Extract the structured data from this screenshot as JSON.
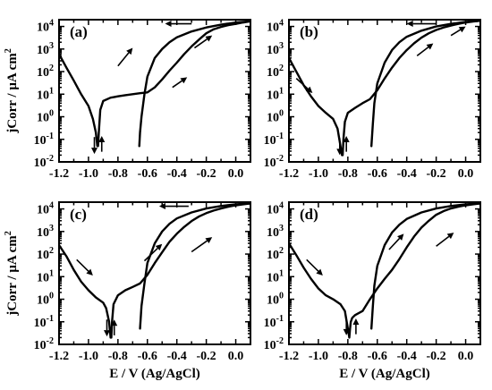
{
  "chart_data": [
    {
      "type": "line",
      "panel_label": "(a)",
      "xlabel": "",
      "ylabel": "jCorr / μA cm^2",
      "xlim": [
        -1.2,
        0.1
      ],
      "ylim_log10": [
        -2,
        4.3
      ],
      "y_scale": "log",
      "xticks": [
        "-1.2",
        "-1.0",
        "-0.8",
        "-0.6",
        "-0.4",
        "-0.2",
        "0.0"
      ],
      "series": [
        {
          "x": [
            -1.2,
            -1.15,
            -1.1,
            -1.05,
            -1.0,
            -0.97,
            -0.95,
            -0.94,
            -0.935,
            -0.93,
            -0.92,
            -0.9,
            -0.85,
            -0.8,
            -0.75,
            -0.7,
            -0.65,
            -0.6,
            -0.55,
            -0.5,
            -0.45,
            -0.4,
            -0.35,
            -0.3,
            -0.25,
            -0.2,
            -0.15,
            -0.1,
            -0.05,
            0.0,
            0.05,
            0.1
          ],
          "y": [
            600,
            150,
            40,
            10,
            3,
            0.8,
            0.2,
            0.05,
            0.05,
            0.2,
            2,
            5,
            7,
            8,
            9,
            10,
            11,
            12,
            20,
            45,
            110,
            250,
            600,
            1300,
            2600,
            5000,
            7500,
            9500,
            11500,
            13000,
            15000,
            17000
          ]
        },
        {
          "x": [
            0.1,
            0.0,
            -0.1,
            -0.2,
            -0.3,
            -0.4,
            -0.45,
            -0.5,
            -0.55,
            -0.6,
            -0.62,
            -0.64,
            -0.65,
            -0.655
          ],
          "y": [
            17000,
            15000,
            12000,
            9000,
            6000,
            3300,
            2000,
            1000,
            400,
            60,
            10,
            1,
            0.2,
            0.05
          ]
        }
      ]
    },
    {
      "type": "line",
      "panel_label": "(b)",
      "xlabel": "",
      "ylabel": "",
      "xlim": [
        -1.2,
        0.1
      ],
      "ylim_log10": [
        -2,
        4.3
      ],
      "y_scale": "log",
      "xticks": [
        "-1.2",
        "-1.0",
        "-0.8",
        "-0.6",
        "-0.4",
        "-0.2",
        "0.0"
      ],
      "series": [
        {
          "x": [
            -1.2,
            -1.15,
            -1.1,
            -1.05,
            -1.0,
            -0.95,
            -0.9,
            -0.87,
            -0.85,
            -0.84,
            -0.835,
            -0.83,
            -0.82,
            -0.8,
            -0.75,
            -0.7,
            -0.65,
            -0.6,
            -0.55,
            -0.5,
            -0.45,
            -0.4,
            -0.35,
            -0.3,
            -0.25,
            -0.2,
            -0.15,
            -0.1,
            -0.05,
            0.0,
            0.05,
            0.1
          ],
          "y": [
            400,
            100,
            25,
            8,
            3,
            1.5,
            0.8,
            0.3,
            0.05,
            0.02,
            0.02,
            0.1,
            0.6,
            1.5,
            2.5,
            4,
            6,
            15,
            50,
            150,
            400,
            900,
            1800,
            3200,
            5000,
            7000,
            9000,
            11000,
            13000,
            15000,
            16500,
            18000
          ]
        },
        {
          "x": [
            0.1,
            0.0,
            -0.1,
            -0.2,
            -0.3,
            -0.4,
            -0.45,
            -0.5,
            -0.55,
            -0.6,
            -0.62,
            -0.63,
            -0.64
          ],
          "y": [
            18000,
            16000,
            13000,
            10000,
            6500,
            3500,
            2000,
            900,
            250,
            30,
            4,
            0.5,
            0.05
          ]
        }
      ]
    },
    {
      "type": "line",
      "panel_label": "(c)",
      "xlabel": "E / V (Ag/AgCl)",
      "ylabel": "jCorr / μA cm^2",
      "xlim": [
        -1.2,
        0.1
      ],
      "ylim_log10": [
        -2,
        4.3
      ],
      "y_scale": "log",
      "xticks": [
        "-1.2",
        "-1.0",
        "-0.8",
        "-0.6",
        "-0.4",
        "-0.2",
        "0.0"
      ],
      "series": [
        {
          "x": [
            -1.2,
            -1.15,
            -1.1,
            -1.05,
            -1.0,
            -0.95,
            -0.9,
            -0.88,
            -0.86,
            -0.85,
            -0.845,
            -0.84,
            -0.83,
            -0.8,
            -0.75,
            -0.7,
            -0.65,
            -0.6,
            -0.55,
            -0.5,
            -0.45,
            -0.4,
            -0.35,
            -0.3,
            -0.25,
            -0.2,
            -0.15,
            -0.1,
            -0.05,
            0.0,
            0.05,
            0.1
          ],
          "y": [
            250,
            80,
            20,
            6,
            2.5,
            1.2,
            0.7,
            0.4,
            0.1,
            0.02,
            0.02,
            0.1,
            0.6,
            1.5,
            2.5,
            3.5,
            5,
            12,
            40,
            120,
            350,
            800,
            1600,
            2900,
            4600,
            6500,
            8500,
            10500,
            12500,
            14500,
            16000,
            17500
          ]
        },
        {
          "x": [
            0.1,
            0.0,
            -0.1,
            -0.2,
            -0.3,
            -0.4,
            -0.45,
            -0.5,
            -0.55,
            -0.6,
            -0.62,
            -0.64,
            -0.65
          ],
          "y": [
            17500,
            16000,
            13500,
            10500,
            7000,
            3800,
            2200,
            1000,
            300,
            40,
            5,
            0.5,
            0.05
          ]
        }
      ]
    },
    {
      "type": "line",
      "panel_label": "(d)",
      "xlabel": "E / V (Ag/AgCl)",
      "ylabel": "",
      "xlim": [
        -1.2,
        0.1
      ],
      "ylim_log10": [
        -2,
        4.3
      ],
      "y_scale": "log",
      "xticks": [
        "-1.2",
        "-1.0",
        "-0.8",
        "-0.6",
        "-0.4",
        "-0.2",
        "0.0"
      ],
      "series": [
        {
          "x": [
            -1.2,
            -1.15,
            -1.1,
            -1.05,
            -1.0,
            -0.95,
            -0.9,
            -0.85,
            -0.82,
            -0.8,
            -0.79,
            -0.785,
            -0.78,
            -0.77,
            -0.75,
            -0.7,
            -0.65,
            -0.6,
            -0.55,
            -0.5,
            -0.45,
            -0.4,
            -0.35,
            -0.3,
            -0.25,
            -0.2,
            -0.15,
            -0.1,
            -0.05,
            0.0,
            0.05,
            0.1
          ],
          "y": [
            300,
            90,
            25,
            8,
            3,
            1.5,
            1,
            0.6,
            0.3,
            0.05,
            0.02,
            0.05,
            0.1,
            0.15,
            0.2,
            0.3,
            1,
            3,
            8,
            20,
            60,
            200,
            600,
            1500,
            3000,
            5500,
            8000,
            10500,
            12500,
            14500,
            16000,
            17500
          ]
        },
        {
          "x": [
            0.1,
            0.0,
            -0.1,
            -0.2,
            -0.3,
            -0.4,
            -0.45,
            -0.5,
            -0.55,
            -0.6,
            -0.62,
            -0.63,
            -0.64
          ],
          "y": [
            17500,
            16000,
            13500,
            10500,
            7000,
            3600,
            2000,
            900,
            250,
            30,
            4,
            0.5,
            0.05
          ]
        }
      ]
    }
  ]
}
